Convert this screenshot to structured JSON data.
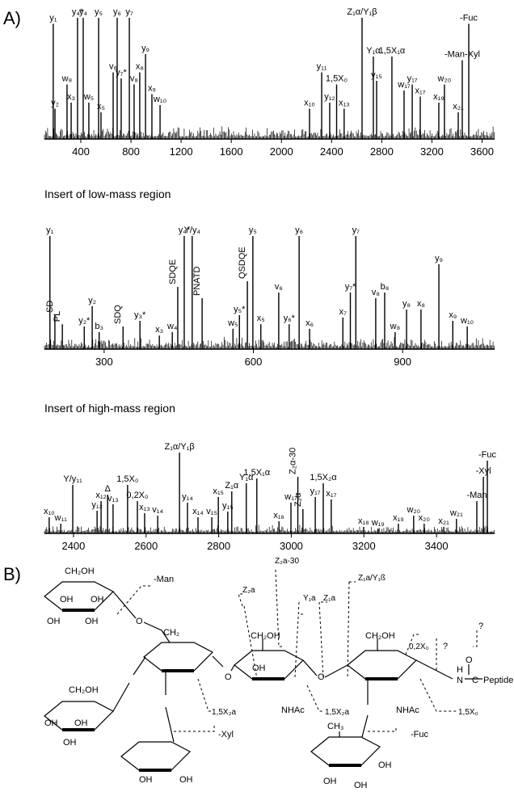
{
  "panels": [
    "A)",
    "B)"
  ],
  "chart_data": [
    {
      "type": "spectrum",
      "color": "#000000",
      "xlim": [
        110,
        3700
      ],
      "ylim": [
        0,
        100
      ],
      "xticks": [
        400,
        800,
        1200,
        1600,
        2000,
        2400,
        2800,
        3200,
        3600
      ],
      "peaks": [
        {
          "label": "y₁",
          "x": 180,
          "y": 95
        },
        {
          "label": "y₂",
          "x": 194,
          "y": 25
        },
        {
          "label": "w₈",
          "x": 290,
          "y": 45
        },
        {
          "label": "x₃",
          "x": 323,
          "y": 30
        },
        {
          "label": "y₄*",
          "x": 374,
          "y": 100
        },
        {
          "label": "y₄",
          "x": 419,
          "y": 100
        },
        {
          "label": "w₅",
          "x": 464,
          "y": 30
        },
        {
          "label": "y₅",
          "x": 542,
          "y": 100
        },
        {
          "label": "x₅",
          "x": 561,
          "y": 22
        },
        {
          "label": "v₆",
          "x": 658,
          "y": 55
        },
        {
          "label": "y₆",
          "x": 690,
          "y": 100
        },
        {
          "label": "y₇*",
          "x": 722,
          "y": 50
        },
        {
          "label": "y₇",
          "x": 787,
          "y": 100
        },
        {
          "label": "v₈",
          "x": 825,
          "y": 45
        },
        {
          "label": "x₈",
          "x": 870,
          "y": 55
        },
        {
          "label": "y₉",
          "x": 916,
          "y": 70
        },
        {
          "label": "x₉",
          "x": 967,
          "y": 37
        },
        {
          "label": "w₁₀",
          "x": 1032,
          "y": 28
        },
        {
          "label": "x₁₀",
          "x": 2224,
          "y": 25
        },
        {
          "label": "y₁₁",
          "x": 2321,
          "y": 55
        },
        {
          "label": "y₁₂",
          "x": 2385,
          "y": 30
        },
        {
          "label": "1,5X₀",
          "x": 2440,
          "y": 45
        },
        {
          "label": "x₁₃",
          "x": 2500,
          "y": 25
        },
        {
          "label": "Z₁α/Y₁β",
          "x": 2643,
          "y": 100
        },
        {
          "label": "Y₁α",
          "x": 2733,
          "y": 68
        },
        {
          "label": "y₁₅",
          "x": 2759,
          "y": 48
        },
        {
          "label": "1,5X₁α",
          "x": 2881,
          "y": 68
        },
        {
          "label": "w₁₇",
          "x": 2978,
          "y": 40
        },
        {
          "label": "y₁₇",
          "x": 3043,
          "y": 45
        },
        {
          "label": "x₁₇",
          "x": 3107,
          "y": 35
        },
        {
          "label": "x₁₉",
          "x": 3255,
          "y": 30
        },
        {
          "label": "w₂₀",
          "x": 3300,
          "y": 45
        },
        {
          "label": "x₂₁",
          "x": 3410,
          "y": 22
        },
        {
          "label": "-Man-Xyl",
          "x": 3442,
          "y": 65
        },
        {
          "label": "-Fuc",
          "x": 3494,
          "y": 95
        }
      ]
    },
    {
      "type": "spectrum",
      "title": "Insert of low-mass region",
      "color": "#000000",
      "xlim": [
        180,
        1085
      ],
      "ylim": [
        0,
        100
      ],
      "xticks": [
        300,
        600,
        900
      ],
      "peaks": [
        {
          "label": "y₁",
          "x": 191,
          "y": 100
        },
        {
          "label": "SD",
          "x": 201,
          "y": 30,
          "vertical": true
        },
        {
          "label": "PL",
          "x": 216,
          "y": 22,
          "vertical": true
        },
        {
          "label": "y₂*",
          "x": 260,
          "y": 20
        },
        {
          "label": "y₂",
          "x": 276,
          "y": 38
        },
        {
          "label": "b₃",
          "x": 290,
          "y": 15
        },
        {
          "label": "SDQ",
          "x": 338,
          "y": 20,
          "vertical": true
        },
        {
          "label": "y₃*",
          "x": 372,
          "y": 25
        },
        {
          "label": "x₃",
          "x": 411,
          "y": 12
        },
        {
          "label": "w₄",
          "x": 437,
          "y": 15
        },
        {
          "label": "SDQE",
          "x": 448,
          "y": 55,
          "vertical": true
        },
        {
          "label": "y₄*",
          "x": 461,
          "y": 100
        },
        {
          "label": "Y/y₄",
          "x": 477,
          "y": 100
        },
        {
          "label": "PNATD",
          "x": 497,
          "y": 45,
          "vertical": true
        },
        {
          "label": "w₅",
          "x": 559,
          "y": 18
        },
        {
          "label": "y₅*",
          "x": 572,
          "y": 30
        },
        {
          "label": "QSDQE",
          "x": 588,
          "y": 60,
          "vertical": true
        },
        {
          "label": "y₅",
          "x": 599,
          "y": 100
        },
        {
          "label": "x₅",
          "x": 615,
          "y": 22
        },
        {
          "label": "v₆",
          "x": 651,
          "y": 50
        },
        {
          "label": "y₆*",
          "x": 672,
          "y": 22
        },
        {
          "label": "y₆",
          "x": 692,
          "y": 100
        },
        {
          "label": "x₆",
          "x": 713,
          "y": 18
        },
        {
          "label": "x₇",
          "x": 780,
          "y": 28
        },
        {
          "label": "y₇*",
          "x": 795,
          "y": 50
        },
        {
          "label": "y₇",
          "x": 806,
          "y": 100
        },
        {
          "label": "v₈",
          "x": 846,
          "y": 45
        },
        {
          "label": "b₈",
          "x": 864,
          "y": 50
        },
        {
          "label": "w₈",
          "x": 885,
          "y": 15
        },
        {
          "label": "y₈",
          "x": 908,
          "y": 35
        },
        {
          "label": "x₈",
          "x": 937,
          "y": 35
        },
        {
          "label": "y₉",
          "x": 973,
          "y": 75
        },
        {
          "label": "x₉",
          "x": 1001,
          "y": 25
        },
        {
          "label": "w₁₀",
          "x": 1030,
          "y": 20
        }
      ]
    },
    {
      "type": "spectrum",
      "title": "Insert of high-mass region",
      "color": "#000000",
      "xlim": [
        2320,
        3560
      ],
      "ylim": [
        0,
        100
      ],
      "xticks": [
        2400,
        2600,
        2800,
        3000,
        3200,
        3400
      ],
      "peaks": [
        {
          "label": "x₁₀",
          "x": 2333,
          "y": 20
        },
        {
          "label": "w₁₁",
          "x": 2365,
          "y": 12
        },
        {
          "label": "Y/y₁₁",
          "x": 2398,
          "y": 60
        },
        {
          "label": "y₁₂",
          "x": 2465,
          "y": 28
        },
        {
          "label": "x₁₂",
          "x": 2476,
          "y": 40
        },
        {
          "label": "Δ",
          "x": 2494,
          "y": 48
        },
        {
          "label": "v₁₃",
          "x": 2509,
          "y": 36
        },
        {
          "label": "1,5X₀",
          "x": 2549,
          "y": 60
        },
        {
          "label": "0,2X₀",
          "x": 2576,
          "y": 40
        },
        {
          "label": "x₁₃",
          "x": 2596,
          "y": 25
        },
        {
          "label": "v₁₄",
          "x": 2632,
          "y": 22
        },
        {
          "label": "Z₁α/Y₁β",
          "x": 2692,
          "y": 100
        },
        {
          "label": "y₁₄",
          "x": 2714,
          "y": 38
        },
        {
          "label": "x₁₄",
          "x": 2743,
          "y": 20
        },
        {
          "label": "v₁₅",
          "x": 2781,
          "y": 20
        },
        {
          "label": "x₁₅",
          "x": 2799,
          "y": 45
        },
        {
          "label": "y₁₅",
          "x": 2825,
          "y": 27
        },
        {
          "label": "Z₁α",
          "x": 2836,
          "y": 52
        },
        {
          "label": "Y₁α",
          "x": 2876,
          "y": 62
        },
        {
          "label": "1,5X₁α",
          "x": 2905,
          "y": 68
        },
        {
          "label": "x₁₆",
          "x": 2966,
          "y": 15
        },
        {
          "label": "w₁₇",
          "x": 2999,
          "y": 38
        },
        {
          "label": "Z₂α-30",
          "x": 3018,
          "y": 70,
          "vertical": true
        },
        {
          "label": "Z₂α",
          "x": 3032,
          "y": 30,
          "vertical": true
        },
        {
          "label": "y₁₇",
          "x": 3066,
          "y": 45
        },
        {
          "label": "1,5X₂α",
          "x": 3088,
          "y": 62
        },
        {
          "label": "x₁₇",
          "x": 3110,
          "y": 42
        },
        {
          "label": "x₁₈",
          "x": 3199,
          "y": 8
        },
        {
          "label": "w₁₉",
          "x": 3239,
          "y": 6
        },
        {
          "label": "x₁₉",
          "x": 3295,
          "y": 12
        },
        {
          "label": "w₂₀",
          "x": 3337,
          "y": 22
        },
        {
          "label": "x₂₀",
          "x": 3366,
          "y": 12
        },
        {
          "label": "x₂₁",
          "x": 3420,
          "y": 8
        },
        {
          "label": "w₂₁",
          "x": 3455,
          "y": 18
        },
        {
          "label": "-Man",
          "x": 3511,
          "y": 40
        },
        {
          "label": "-Xyl",
          "x": 3529,
          "y": 70
        },
        {
          "label": "-Fuc",
          "x": 3540,
          "y": 90
        }
      ]
    }
  ],
  "diagram": {
    "labels": [
      "CH₂OH",
      "-Man",
      "OH",
      "OH",
      "OH",
      "OH",
      "O",
      "CH₂",
      "Z₂a-30",
      "Z₂a",
      "Y₁a",
      "Z₁a",
      "Z₁a/Y₁ß",
      "0,2X₀",
      "?",
      "?",
      "H",
      "N",
      "C",
      "O",
      "Peptide",
      "CH₂OH",
      "OH",
      "NHAc",
      "O",
      "O",
      "CH₂OH",
      "NHAc",
      "1,5X₂a",
      "1,5X₂a",
      "1,5X₀",
      "-Fuc",
      "-Xyl",
      "CH₃",
      "CH₂OH",
      "OH",
      "OH",
      "OH",
      "OH",
      "OH",
      "OH",
      "OH",
      "OH"
    ]
  }
}
